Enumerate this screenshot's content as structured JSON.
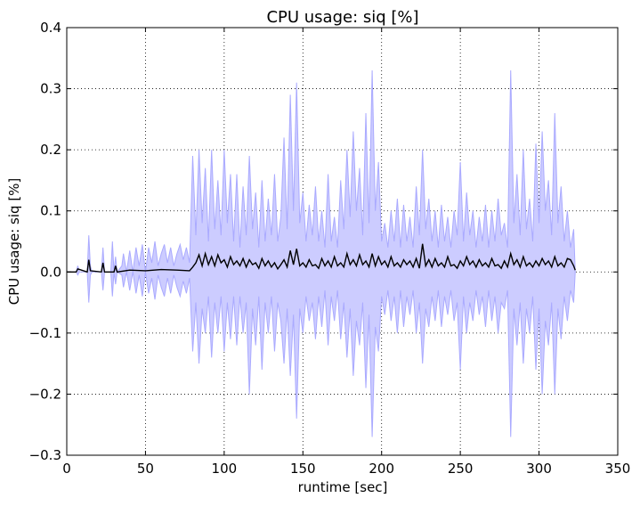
{
  "chart_data": {
    "type": "area",
    "title": "CPU usage: siq [%]",
    "xlabel": "runtime [sec]",
    "ylabel": "CPU usage: siq [%]",
    "xlim": [
      0,
      350
    ],
    "ylim": [
      -0.3,
      0.4
    ],
    "xticks": [
      0,
      50,
      100,
      150,
      200,
      250,
      300,
      350
    ],
    "xtick_labels": [
      "0",
      "50",
      "100",
      "150",
      "200",
      "250",
      "300",
      "350"
    ],
    "yticks": [
      -0.3,
      -0.2,
      -0.1,
      0.0,
      0.1,
      0.2,
      0.3,
      0.4
    ],
    "ytick_labels": [
      "−0.3",
      "−0.2",
      "−0.1",
      "0.0",
      "0.1",
      "0.2",
      "0.3",
      "0.4"
    ],
    "grid": true,
    "series": [
      {
        "role": "mean",
        "color": "#000000",
        "x": [
          0,
          6,
          7,
          13,
          14,
          15,
          22,
          23,
          24,
          30,
          31,
          32,
          40,
          50,
          60,
          70,
          78,
          80,
          82,
          84,
          86,
          88,
          90,
          92,
          94,
          96,
          98,
          100,
          102,
          104,
          106,
          108,
          110,
          112,
          114,
          116,
          118,
          120,
          122,
          124,
          126,
          128,
          130,
          132,
          134,
          136,
          138,
          140,
          142,
          144,
          146,
          148,
          150,
          152,
          154,
          156,
          158,
          160,
          162,
          164,
          166,
          168,
          170,
          172,
          174,
          176,
          178,
          180,
          182,
          184,
          186,
          188,
          190,
          192,
          194,
          196,
          198,
          200,
          202,
          204,
          206,
          208,
          210,
          212,
          214,
          216,
          218,
          220,
          222,
          224,
          226,
          228,
          230,
          232,
          234,
          236,
          238,
          240,
          242,
          244,
          246,
          248,
          250,
          252,
          254,
          256,
          258,
          260,
          262,
          264,
          266,
          268,
          270,
          272,
          274,
          276,
          278,
          280,
          282,
          284,
          286,
          288,
          290,
          292,
          294,
          296,
          298,
          300,
          302,
          304,
          306,
          308,
          310,
          312,
          314,
          316,
          318,
          320,
          322,
          323
        ],
        "y": [
          0.0,
          0.0,
          0.005,
          0.0,
          0.02,
          0.002,
          0.0,
          0.015,
          0.0,
          0.0,
          0.01,
          0.0,
          0.003,
          0.002,
          0.004,
          0.003,
          0.002,
          0.008,
          0.015,
          0.028,
          0.01,
          0.03,
          0.012,
          0.025,
          0.01,
          0.028,
          0.015,
          0.02,
          0.008,
          0.025,
          0.012,
          0.018,
          0.01,
          0.022,
          0.008,
          0.02,
          0.012,
          0.015,
          0.006,
          0.022,
          0.01,
          0.018,
          0.008,
          0.015,
          0.005,
          0.012,
          0.02,
          0.008,
          0.035,
          0.012,
          0.038,
          0.01,
          0.015,
          0.008,
          0.02,
          0.01,
          0.012,
          0.006,
          0.022,
          0.01,
          0.018,
          0.008,
          0.025,
          0.01,
          0.015,
          0.008,
          0.03,
          0.012,
          0.02,
          0.01,
          0.028,
          0.012,
          0.018,
          0.008,
          0.03,
          0.01,
          0.025,
          0.012,
          0.018,
          0.008,
          0.025,
          0.01,
          0.015,
          0.008,
          0.02,
          0.012,
          0.018,
          0.008,
          0.022,
          0.006,
          0.046,
          0.01,
          0.02,
          0.008,
          0.022,
          0.01,
          0.015,
          0.008,
          0.025,
          0.01,
          0.012,
          0.006,
          0.018,
          0.01,
          0.025,
          0.012,
          0.018,
          0.008,
          0.02,
          0.01,
          0.015,
          0.008,
          0.022,
          0.01,
          0.012,
          0.006,
          0.018,
          0.008,
          0.03,
          0.012,
          0.02,
          0.008,
          0.025,
          0.01,
          0.015,
          0.008,
          0.018,
          0.01,
          0.022,
          0.012,
          0.018,
          0.008,
          0.025,
          0.01,
          0.015,
          0.008,
          0.022,
          0.02,
          0.01,
          0.003
        ]
      },
      {
        "role": "upper-band",
        "color": "#ccccff",
        "x": [
          0,
          6,
          7,
          8,
          13,
          14,
          15,
          16,
          22,
          23,
          24,
          28,
          29,
          30,
          31,
          32,
          35,
          36,
          38,
          40,
          42,
          44,
          46,
          48,
          50,
          52,
          54,
          56,
          58,
          60,
          62,
          64,
          66,
          68,
          70,
          72,
          74,
          76,
          78,
          80,
          82,
          84,
          86,
          88,
          90,
          92,
          94,
          96,
          98,
          100,
          102,
          104,
          106,
          108,
          110,
          112,
          114,
          116,
          118,
          120,
          122,
          124,
          126,
          128,
          130,
          132,
          134,
          136,
          138,
          140,
          142,
          144,
          146,
          148,
          150,
          152,
          154,
          156,
          158,
          160,
          162,
          164,
          166,
          168,
          170,
          172,
          174,
          176,
          178,
          180,
          182,
          184,
          186,
          188,
          190,
          192,
          194,
          196,
          198,
          200,
          202,
          204,
          206,
          208,
          210,
          212,
          214,
          216,
          218,
          220,
          222,
          224,
          226,
          228,
          230,
          232,
          234,
          236,
          238,
          240,
          242,
          244,
          246,
          248,
          250,
          252,
          254,
          256,
          258,
          260,
          262,
          264,
          266,
          268,
          270,
          272,
          274,
          276,
          278,
          280,
          282,
          284,
          286,
          288,
          290,
          292,
          294,
          296,
          298,
          300,
          302,
          304,
          306,
          308,
          310,
          312,
          314,
          316,
          318,
          320,
          322,
          323
        ],
        "y": [
          0.0,
          0.0,
          0.01,
          0.0,
          0.0,
          0.06,
          0.01,
          0.0,
          0.0,
          0.04,
          0.0,
          0.0,
          0.05,
          0.0,
          0.025,
          0.0,
          0.01,
          0.03,
          0.0,
          0.035,
          0.0,
          0.04,
          0.01,
          0.045,
          0.0,
          0.04,
          0.015,
          0.05,
          0.01,
          0.03,
          0.045,
          0.015,
          0.04,
          0.01,
          0.03,
          0.045,
          0.02,
          0.04,
          0.015,
          0.19,
          0.06,
          0.2,
          0.08,
          0.17,
          0.05,
          0.2,
          0.07,
          0.15,
          0.06,
          0.2,
          0.08,
          0.16,
          0.05,
          0.16,
          0.04,
          0.14,
          0.06,
          0.19,
          0.07,
          0.13,
          0.04,
          0.15,
          0.05,
          0.12,
          0.06,
          0.16,
          0.05,
          0.09,
          0.22,
          0.07,
          0.29,
          0.1,
          0.31,
          0.08,
          0.13,
          0.05,
          0.11,
          0.06,
          0.14,
          0.05,
          0.1,
          0.04,
          0.16,
          0.05,
          0.09,
          0.04,
          0.15,
          0.07,
          0.2,
          0.09,
          0.23,
          0.1,
          0.17,
          0.06,
          0.26,
          0.08,
          0.33,
          0.1,
          0.18,
          0.05,
          0.08,
          0.04,
          0.1,
          0.05,
          0.12,
          0.04,
          0.11,
          0.05,
          0.09,
          0.04,
          0.14,
          0.06,
          0.2,
          0.07,
          0.12,
          0.05,
          0.1,
          0.04,
          0.11,
          0.05,
          0.09,
          0.04,
          0.1,
          0.06,
          0.18,
          0.05,
          0.13,
          0.06,
          0.1,
          0.04,
          0.09,
          0.05,
          0.11,
          0.04,
          0.1,
          0.05,
          0.12,
          0.06,
          0.08,
          0.04,
          0.33,
          0.08,
          0.16,
          0.06,
          0.2,
          0.07,
          0.12,
          0.05,
          0.21,
          0.08,
          0.23,
          0.1,
          0.15,
          0.06,
          0.26,
          0.08,
          0.14,
          0.05,
          0.1,
          0.04,
          0.07,
          0.0
        ]
      },
      {
        "role": "lower-band",
        "color": "#ccccff",
        "x": [
          0,
          6,
          7,
          8,
          13,
          14,
          15,
          16,
          22,
          23,
          24,
          28,
          29,
          30,
          31,
          32,
          35,
          36,
          38,
          40,
          42,
          44,
          46,
          48,
          50,
          52,
          54,
          56,
          58,
          60,
          62,
          64,
          66,
          68,
          70,
          72,
          74,
          76,
          78,
          80,
          82,
          84,
          86,
          88,
          90,
          92,
          94,
          96,
          98,
          100,
          102,
          104,
          106,
          108,
          110,
          112,
          114,
          116,
          118,
          120,
          122,
          124,
          126,
          128,
          130,
          132,
          134,
          136,
          138,
          140,
          142,
          144,
          146,
          148,
          150,
          152,
          154,
          156,
          158,
          160,
          162,
          164,
          166,
          168,
          170,
          172,
          174,
          176,
          178,
          180,
          182,
          184,
          186,
          188,
          190,
          192,
          194,
          196,
          198,
          200,
          202,
          204,
          206,
          208,
          210,
          212,
          214,
          216,
          218,
          220,
          222,
          224,
          226,
          228,
          230,
          232,
          234,
          236,
          238,
          240,
          242,
          244,
          246,
          248,
          250,
          252,
          254,
          256,
          258,
          260,
          262,
          264,
          266,
          268,
          270,
          272,
          274,
          276,
          278,
          280,
          282,
          284,
          286,
          288,
          290,
          292,
          294,
          296,
          298,
          300,
          302,
          304,
          306,
          308,
          310,
          312,
          314,
          316,
          318,
          320,
          322,
          323
        ],
        "y": [
          0.0,
          0.0,
          -0.005,
          0.0,
          0.0,
          -0.05,
          -0.005,
          0.0,
          0.0,
          -0.03,
          0.0,
          0.0,
          -0.04,
          0.0,
          -0.02,
          0.0,
          -0.005,
          -0.025,
          0.0,
          -0.03,
          0.0,
          -0.035,
          -0.005,
          -0.04,
          0.0,
          -0.035,
          -0.01,
          -0.045,
          -0.005,
          -0.025,
          -0.04,
          -0.01,
          -0.035,
          -0.005,
          -0.025,
          -0.04,
          -0.015,
          -0.035,
          -0.01,
          -0.13,
          -0.05,
          -0.15,
          -0.06,
          -0.1,
          -0.04,
          -0.14,
          -0.05,
          -0.1,
          -0.04,
          -0.13,
          -0.05,
          -0.11,
          -0.04,
          -0.12,
          -0.04,
          -0.1,
          -0.05,
          -0.2,
          -0.06,
          -0.12,
          -0.04,
          -0.16,
          -0.05,
          -0.1,
          -0.04,
          -0.13,
          -0.05,
          -0.08,
          -0.15,
          -0.06,
          -0.17,
          -0.07,
          -0.24,
          -0.06,
          -0.1,
          -0.04,
          -0.08,
          -0.05,
          -0.11,
          -0.04,
          -0.09,
          -0.03,
          -0.12,
          -0.04,
          -0.08,
          -0.03,
          -0.11,
          -0.05,
          -0.14,
          -0.06,
          -0.17,
          -0.08,
          -0.12,
          -0.05,
          -0.19,
          -0.07,
          -0.27,
          -0.09,
          -0.13,
          -0.04,
          -0.07,
          -0.03,
          -0.08,
          -0.04,
          -0.1,
          -0.03,
          -0.09,
          -0.04,
          -0.07,
          -0.03,
          -0.1,
          -0.05,
          -0.15,
          -0.06,
          -0.09,
          -0.04,
          -0.08,
          -0.03,
          -0.09,
          -0.04,
          -0.07,
          -0.03,
          -0.08,
          -0.05,
          -0.16,
          -0.04,
          -0.1,
          -0.05,
          -0.08,
          -0.03,
          -0.07,
          -0.04,
          -0.09,
          -0.03,
          -0.08,
          -0.04,
          -0.1,
          -0.05,
          -0.06,
          -0.03,
          -0.27,
          -0.06,
          -0.12,
          -0.05,
          -0.15,
          -0.06,
          -0.1,
          -0.04,
          -0.16,
          -0.06,
          -0.2,
          -0.08,
          -0.12,
          -0.05,
          -0.2,
          -0.06,
          -0.11,
          -0.04,
          -0.08,
          -0.03,
          -0.05,
          0.0
        ]
      }
    ]
  }
}
